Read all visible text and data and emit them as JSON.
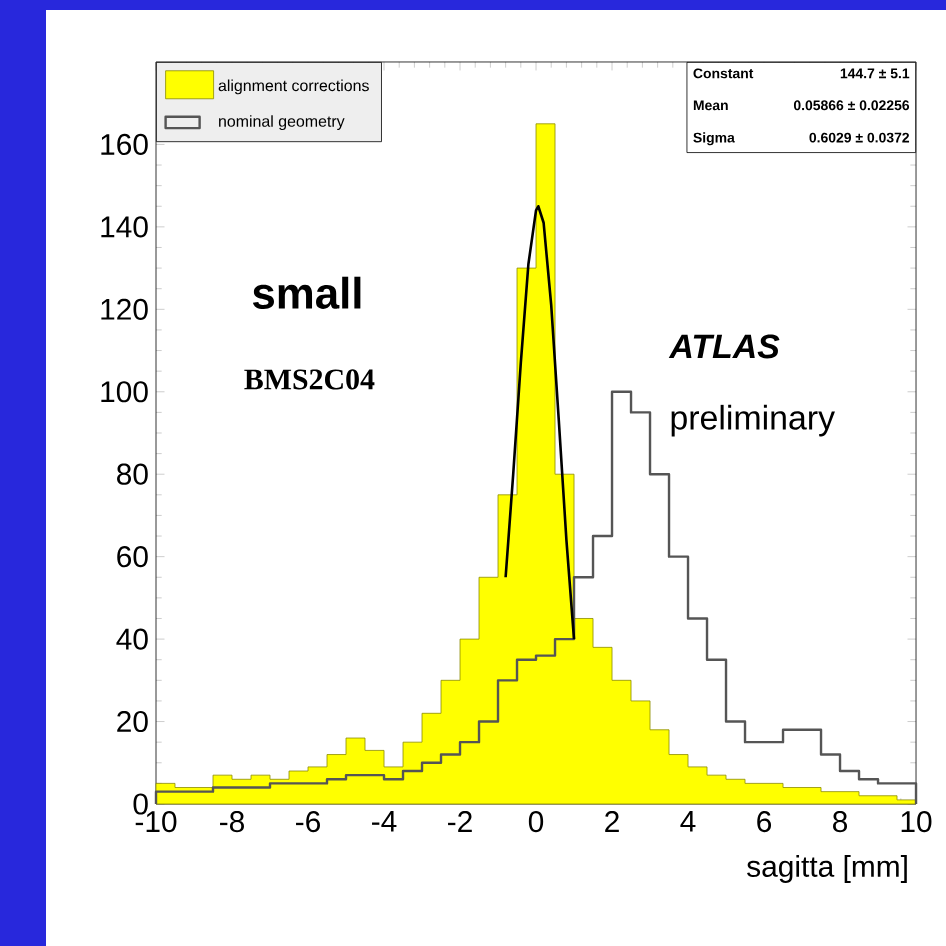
{
  "chart_data": {
    "type": "histogram",
    "xlabel": "sagitta  [mm]",
    "bins": [
      -10,
      -9.5,
      -9,
      -8.5,
      -8,
      -7.5,
      -7,
      -6.5,
      -6,
      -5.5,
      -5,
      -4.5,
      -4,
      -3.5,
      -3,
      -2.5,
      -2,
      -1.5,
      -1,
      -0.5,
      0,
      0.5,
      1,
      1.5,
      2,
      2.5,
      3,
      3.5,
      4,
      4.5,
      5,
      5.5,
      6,
      6.5,
      7,
      7.5,
      8,
      8.5,
      9,
      9.5,
      10
    ],
    "series": [
      {
        "name": "alignment corrections",
        "color": "#ffff00",
        "values": [
          5,
          4,
          4,
          7,
          6,
          7,
          6,
          8,
          9,
          12,
          16,
          13,
          9,
          15,
          22,
          30,
          40,
          55,
          75,
          130,
          165,
          80,
          45,
          38,
          30,
          25,
          18,
          12,
          9,
          7,
          6,
          5,
          5,
          4,
          4,
          3,
          3,
          2,
          2,
          1
        ]
      },
      {
        "name": "nominal geometry",
        "color": "#555555",
        "values": [
          3,
          3,
          3,
          4,
          4,
          4,
          5,
          5,
          5,
          6,
          7,
          7,
          6,
          8,
          10,
          12,
          15,
          20,
          30,
          35,
          36,
          40,
          55,
          65,
          100,
          95,
          80,
          60,
          45,
          35,
          20,
          15,
          15,
          18,
          18,
          12,
          8,
          6,
          5,
          5
        ]
      },
      {
        "type": "line",
        "color": "#000000",
        "x": [
          -0.8,
          -0.6,
          -0.4,
          -0.2,
          0,
          0.06,
          0.2,
          0.4,
          0.6,
          0.8,
          1.0
        ],
        "values": [
          55,
          80,
          107,
          131,
          144,
          145,
          141,
          121,
          93,
          64,
          40
        ]
      }
    ],
    "xlim": [
      -10,
      10
    ],
    "ylim": [
      0,
      180
    ],
    "xticks": [
      -10,
      -8,
      -6,
      -4,
      -2,
      0,
      2,
      4,
      6,
      8,
      10
    ],
    "yticks": [
      0,
      20,
      40,
      60,
      80,
      100,
      120,
      140,
      160
    ],
    "legend": "top left",
    "annotations": [
      "small",
      "BMS2C04",
      "ATLAS",
      "preliminary",
      "Constant",
      "144.7 ± 5.1",
      "Mean",
      "0.05866 ± 0.02256",
      "Sigma",
      "0.6029 ± 0.0372"
    ]
  }
}
